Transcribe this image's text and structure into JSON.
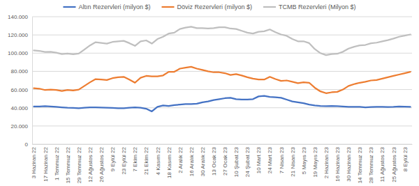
{
  "chart_data": {
    "type": "line",
    "categories": [
      "3 Haziran 22",
      null,
      "17 Haziran 22",
      null,
      "1 Temmuz 22",
      null,
      "15 Temmuz 22",
      null,
      "29 Temmuz 22",
      null,
      "12 Ağustos 22",
      null,
      "26 Ağustos 22",
      null,
      "9 Eylül 22",
      null,
      "23 Eylül 22",
      null,
      "7 Ekim 22",
      null,
      "21 Ekim 22",
      null,
      "4 Kasım 22",
      null,
      "18 Kasım 22",
      null,
      "2 Aralık 22",
      null,
      "16 Aralık 22",
      null,
      "30 Aralık 22",
      null,
      "13 Ocak 23",
      null,
      "27 Ocak 23",
      null,
      "10 Şubat 23",
      null,
      "24 Şubat 23",
      null,
      "10 Mart 23",
      null,
      "24 Mart 23",
      null,
      "7 Nisan 23",
      null,
      "21 Nisan 23",
      null,
      "5 Mayıs 23",
      null,
      "19 Mayıs 23",
      null,
      "2 Haziran 23",
      null,
      "16 Haziran 23",
      null,
      "30 Haziran 23",
      null,
      "14 Temmuz 23",
      null,
      "28 Temmuz 23",
      null,
      "11 Ağustos 23",
      null,
      "25 Ağustos 23",
      null,
      "8 Eylül 23",
      null
    ],
    "series": [
      {
        "name": "Altın Rezervleri (milyon $)",
        "color": "#4472c4",
        "values": [
          41500,
          41500,
          41800,
          41500,
          41000,
          40500,
          40000,
          39800,
          39500,
          40000,
          40500,
          40500,
          40200,
          40000,
          39800,
          39500,
          39500,
          40000,
          40500,
          40000,
          39000,
          36000,
          41000,
          42500,
          42000,
          43000,
          43500,
          44000,
          44000,
          44500,
          46000,
          47000,
          48500,
          49500,
          50500,
          51000,
          49500,
          49000,
          49000,
          49500,
          52500,
          53000,
          52000,
          51500,
          51000,
          49000,
          47000,
          46000,
          45000,
          43500,
          42500,
          42000,
          41800,
          42000,
          41800,
          41500,
          41000,
          41000,
          41000,
          40500,
          40800,
          41000,
          41000,
          40800,
          41000,
          41500,
          41200,
          41000
        ]
      },
      {
        "name": "Döviz Rezervleri (milyon $)",
        "color": "#ed7d31",
        "values": [
          61500,
          61000,
          59500,
          60000,
          59500,
          58500,
          59500,
          59000,
          60000,
          64000,
          68000,
          71500,
          71000,
          70500,
          72500,
          73500,
          74000,
          71000,
          67500,
          73000,
          75000,
          74500,
          74500,
          75500,
          79500,
          79500,
          83000,
          84000,
          85000,
          83000,
          81500,
          80000,
          79000,
          79000,
          78000,
          76000,
          77000,
          75500,
          73500,
          72000,
          71000,
          71000,
          74000,
          71500,
          69500,
          70000,
          68500,
          67000,
          68000,
          67500,
          62000,
          58000,
          56000,
          57000,
          57500,
          60000,
          64000,
          66000,
          67500,
          68500,
          70000,
          70500,
          72000,
          73500,
          75000,
          76500,
          78000,
          79500
        ]
      },
      {
        "name": "TCMB Rezervleri (Milyon $)",
        "color": "#bfbfbf",
        "values": [
          103000,
          102500,
          101300,
          101500,
          100500,
          99000,
          99500,
          98800,
          99500,
          104000,
          108500,
          112000,
          111200,
          110500,
          112300,
          113000,
          113500,
          111000,
          108000,
          113000,
          114000,
          110500,
          115500,
          118000,
          121500,
          122500,
          126500,
          128000,
          129000,
          127500,
          127500,
          127000,
          127500,
          128500,
          128500,
          127000,
          126500,
          124500,
          122500,
          121500,
          123500,
          124000,
          126000,
          123000,
          120500,
          119000,
          115500,
          113000,
          113000,
          111000,
          104500,
          100000,
          97800,
          99000,
          99300,
          101500,
          105000,
          107000,
          108500,
          109000,
          110800,
          111500,
          113000,
          114300,
          116000,
          118000,
          119200,
          120500
        ]
      }
    ],
    "ylim": [
      0,
      140000
    ],
    "yticks": [
      0,
      {
        "value": 20000,
        "label": "20.000"
      },
      {
        "value": 40000,
        "label": "40.000"
      },
      {
        "value": 60000,
        "label": "60.000"
      },
      {
        "value": 80000,
        "label": "80.000"
      },
      {
        "value": 100000,
        "label": "100.000"
      },
      {
        "value": 120000,
        "label": "120.000"
      },
      {
        "value": 140000,
        "label": "140.000"
      }
    ],
    "grid": true,
    "legend": "top"
  }
}
